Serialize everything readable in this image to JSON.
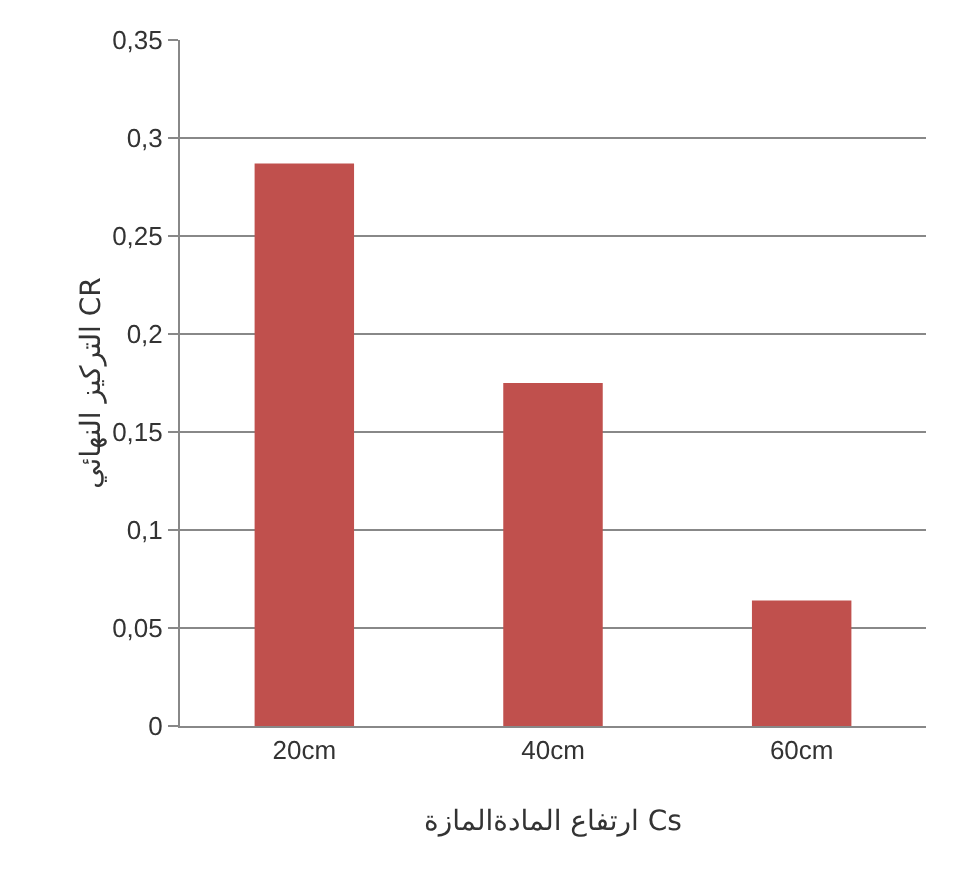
{
  "chart_data": {
    "type": "bar",
    "xlabel": "ارتفاع المادةالمازة Cs",
    "ylabel": "التركيز النهائي CR",
    "categories": [
      "20cm",
      "40cm",
      "60cm"
    ],
    "series": [
      {
        "color": "#c0504d",
        "values": [
          0.287,
          0.175,
          0.064
        ]
      }
    ],
    "ylim": [
      0,
      0.35
    ],
    "yticks": [
      0,
      {
        "value": 0.05,
        "label": "0,05"
      },
      {
        "value": 0.1,
        "label": "0,1"
      },
      {
        "value": 0.15,
        "label": "0,15"
      },
      {
        "value": 0.2,
        "label": "0,2"
      },
      {
        "value": 0.25,
        "label": "0,25"
      },
      {
        "value": 0.3,
        "label": "0,3"
      },
      {
        "value": 0.35,
        "label": "0,35"
      }
    ],
    "grid": "y"
  }
}
